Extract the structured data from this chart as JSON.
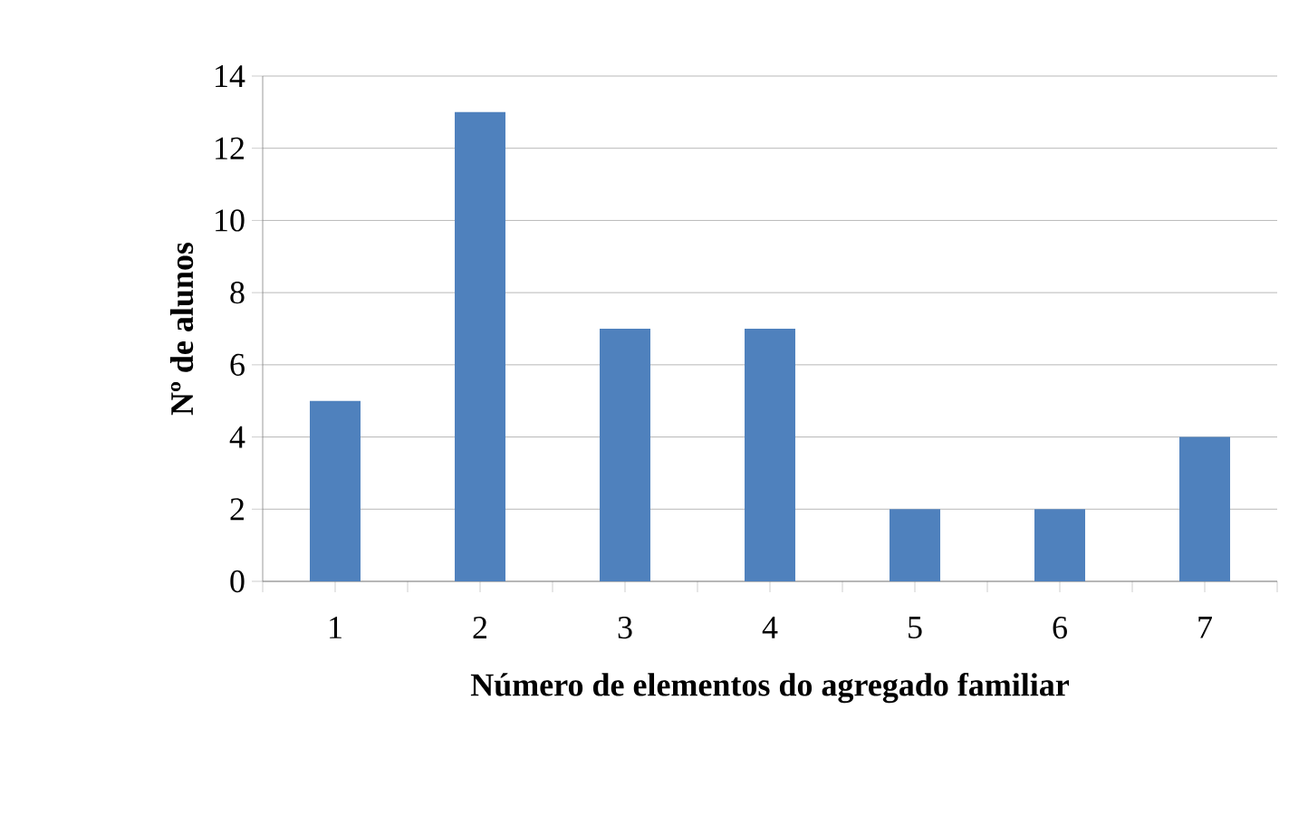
{
  "chart_data": {
    "type": "bar",
    "categories": [
      "1",
      "2",
      "3",
      "4",
      "5",
      "6",
      "7"
    ],
    "values": [
      5,
      13,
      7,
      7,
      2,
      2,
      4
    ],
    "color": "#4f81bd",
    "xlabel": "Número de elementos do agregado familiar",
    "ylabel": "Nº de alunos",
    "ylim": [
      0,
      14
    ],
    "yticks": [
      0,
      2,
      4,
      6,
      8,
      10,
      12,
      14
    ],
    "grid": "y"
  }
}
